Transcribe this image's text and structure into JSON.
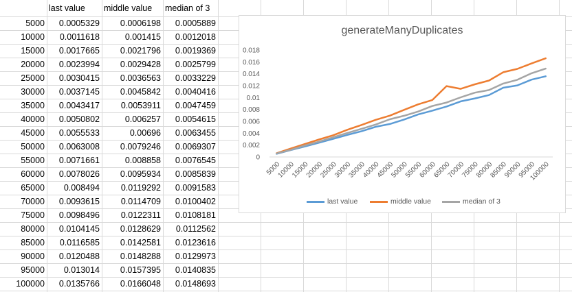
{
  "table": {
    "headers": [
      "",
      "last value",
      "middle value",
      "median of 3"
    ],
    "rows": [
      [
        "5000",
        "0.0005329",
        "0.0006198",
        "0.0005889"
      ],
      [
        "10000",
        "0.0011618",
        "0.001415",
        "0.0012018"
      ],
      [
        "15000",
        "0.0017665",
        "0.0021796",
        "0.0019369"
      ],
      [
        "20000",
        "0.0023994",
        "0.0029428",
        "0.0025799"
      ],
      [
        "25000",
        "0.0030415",
        "0.0036563",
        "0.0033229"
      ],
      [
        "30000",
        "0.0037145",
        "0.0045842",
        "0.0040416"
      ],
      [
        "35000",
        "0.0043417",
        "0.0053911",
        "0.0047459"
      ],
      [
        "40000",
        "0.0050802",
        "0.006257",
        "0.0054615"
      ],
      [
        "45000",
        "0.0055533",
        "0.00696",
        "0.0063455"
      ],
      [
        "50000",
        "0.0063008",
        "0.0079246",
        "0.0069307"
      ],
      [
        "55000",
        "0.0071661",
        "0.008858",
        "0.0076545"
      ],
      [
        "60000",
        "0.0078026",
        "0.0095934",
        "0.0085839"
      ],
      [
        "65000",
        "0.008494",
        "0.0119292",
        "0.0091583"
      ],
      [
        "70000",
        "0.0093615",
        "0.0114709",
        "0.0100402"
      ],
      [
        "75000",
        "0.0098496",
        "0.0122311",
        "0.0108181"
      ],
      [
        "80000",
        "0.0104145",
        "0.0128629",
        "0.0112562"
      ],
      [
        "85000",
        "0.0116585",
        "0.0142581",
        "0.0123616"
      ],
      [
        "90000",
        "0.0120488",
        "0.0148288",
        "0.0129973"
      ],
      [
        "95000",
        "0.013014",
        "0.0157395",
        "0.0140835"
      ],
      [
        "100000",
        "0.0135766",
        "0.0166048",
        "0.0148693"
      ]
    ]
  },
  "chart_data": {
    "type": "line",
    "title": "generateManyDuplicates",
    "xlabel": "",
    "ylabel": "",
    "categories": [
      "5000",
      "10000",
      "15000",
      "20000",
      "25000",
      "30000",
      "35000",
      "40000",
      "45000",
      "50000",
      "55000",
      "60000",
      "65000",
      "70000",
      "75000",
      "80000",
      "85000",
      "90000",
      "95000",
      "100000"
    ],
    "yticks": [
      "0",
      "0.002",
      "0.004",
      "0.006",
      "0.008",
      "0.01",
      "0.012",
      "0.014",
      "0.016",
      "0.018"
    ],
    "ylim": [
      0,
      0.018
    ],
    "grid": false,
    "legend_position": "bottom",
    "series": [
      {
        "name": "last value",
        "color": "#5b9bd5",
        "values": [
          0.0005329,
          0.0011618,
          0.0017665,
          0.0023994,
          0.0030415,
          0.0037145,
          0.0043417,
          0.0050802,
          0.0055533,
          0.0063008,
          0.0071661,
          0.0078026,
          0.008494,
          0.0093615,
          0.0098496,
          0.0104145,
          0.0116585,
          0.0120488,
          0.013014,
          0.0135766
        ]
      },
      {
        "name": "middle value",
        "color": "#ed7d31",
        "values": [
          0.0006198,
          0.001415,
          0.0021796,
          0.0029428,
          0.0036563,
          0.0045842,
          0.0053911,
          0.006257,
          0.00696,
          0.0079246,
          0.008858,
          0.0095934,
          0.0119292,
          0.0114709,
          0.0122311,
          0.0128629,
          0.0142581,
          0.0148288,
          0.0157395,
          0.0166048
        ]
      },
      {
        "name": "median of 3",
        "color": "#a5a5a5",
        "values": [
          0.0005889,
          0.0012018,
          0.0019369,
          0.0025799,
          0.0033229,
          0.0040416,
          0.0047459,
          0.0054615,
          0.0063455,
          0.0069307,
          0.0076545,
          0.0085839,
          0.0091583,
          0.0100402,
          0.0108181,
          0.0112562,
          0.0123616,
          0.0129973,
          0.0140835,
          0.0148693
        ]
      }
    ]
  }
}
